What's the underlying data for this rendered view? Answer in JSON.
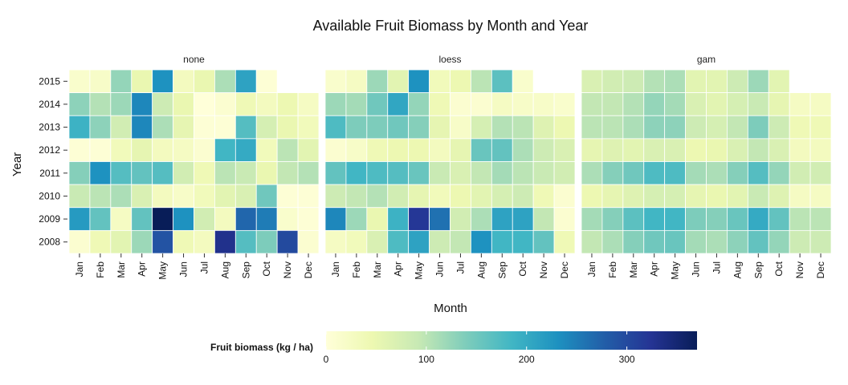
{
  "chart_data": {
    "type": "heatmap",
    "title": "Available Fruit Biomass by Month and Year",
    "xlabel": "Month",
    "ylabel": "Year",
    "months": [
      "Jan",
      "Feb",
      "Mar",
      "Apr",
      "May",
      "Jun",
      "Jul",
      "Aug",
      "Sep",
      "Oct",
      "Nov",
      "Dec"
    ],
    "years": [
      "2015",
      "2014",
      "2013",
      "2012",
      "2011",
      "2010",
      "2009",
      "2008"
    ],
    "legend": {
      "title": "Fruit biomass (kg / ha)",
      "ticks": [
        0,
        100,
        200,
        300
      ],
      "range": [
        0,
        370
      ],
      "placement": "bottom",
      "colors": [
        "#ffffd9",
        "#edf8b1",
        "#c7e9b4",
        "#7fcdbb",
        "#41b6c4",
        "#1d91c0",
        "#225ea8",
        "#253494",
        "#081d58"
      ]
    },
    "panels": [
      {
        "name": "none",
        "values": [
          [
            15,
            20,
            125,
            50,
            230,
            30,
            50,
            110,
            210,
            5,
            null,
            null
          ],
          [
            130,
            105,
            120,
            240,
            85,
            50,
            0,
            10,
            40,
            30,
            45,
            25
          ],
          [
            190,
            130,
            80,
            240,
            110,
            55,
            5,
            5,
            170,
            75,
            50,
            35
          ],
          [
            5,
            5,
            35,
            55,
            30,
            25,
            10,
            185,
            200,
            35,
            100,
            60
          ],
          [
            135,
            230,
            170,
            160,
            170,
            80,
            40,
            100,
            90,
            50,
            95,
            105
          ],
          [
            90,
            100,
            110,
            70,
            30,
            20,
            35,
            60,
            70,
            150,
            5,
            5
          ],
          [
            220,
            160,
            25,
            160,
            370,
            230,
            80,
            30,
            270,
            250,
            15,
            5
          ],
          [
            10,
            40,
            60,
            120,
            290,
            40,
            30,
            330,
            170,
            140,
            300,
            10
          ]
        ]
      },
      {
        "name": "loess",
        "values": [
          [
            15,
            25,
            120,
            60,
            230,
            35,
            45,
            100,
            165,
            15,
            null,
            null
          ],
          [
            120,
            115,
            150,
            205,
            125,
            40,
            10,
            10,
            25,
            20,
            20,
            15
          ],
          [
            175,
            140,
            140,
            150,
            135,
            55,
            20,
            75,
            105,
            100,
            65,
            45
          ],
          [
            10,
            20,
            40,
            45,
            45,
            30,
            55,
            155,
            160,
            110,
            85,
            70
          ],
          [
            160,
            185,
            175,
            170,
            155,
            90,
            70,
            95,
            115,
            100,
            90,
            80
          ],
          [
            85,
            95,
            105,
            80,
            55,
            35,
            45,
            60,
            75,
            85,
            40,
            10
          ],
          [
            240,
            120,
            50,
            190,
            320,
            260,
            80,
            110,
            210,
            210,
            95,
            10
          ],
          [
            25,
            35,
            70,
            175,
            210,
            85,
            95,
            230,
            185,
            185,
            160,
            40
          ]
        ]
      },
      {
        "name": "gam",
        "values": [
          [
            70,
            80,
            85,
            105,
            110,
            60,
            60,
            85,
            120,
            60,
            null,
            null
          ],
          [
            95,
            95,
            105,
            125,
            115,
            70,
            60,
            75,
            90,
            55,
            25,
            25
          ],
          [
            100,
            100,
            110,
            130,
            130,
            85,
            75,
            95,
            140,
            85,
            40,
            40
          ],
          [
            55,
            65,
            60,
            70,
            70,
            45,
            50,
            70,
            95,
            70,
            30,
            30
          ],
          [
            110,
            135,
            150,
            175,
            175,
            115,
            110,
            135,
            170,
            125,
            80,
            80
          ],
          [
            45,
            55,
            65,
            75,
            75,
            55,
            50,
            60,
            90,
            65,
            25,
            25
          ],
          [
            115,
            135,
            165,
            185,
            185,
            140,
            135,
            155,
            200,
            160,
            100,
            100
          ],
          [
            95,
            110,
            135,
            150,
            155,
            115,
            110,
            130,
            160,
            125,
            85,
            85
          ]
        ]
      }
    ]
  }
}
